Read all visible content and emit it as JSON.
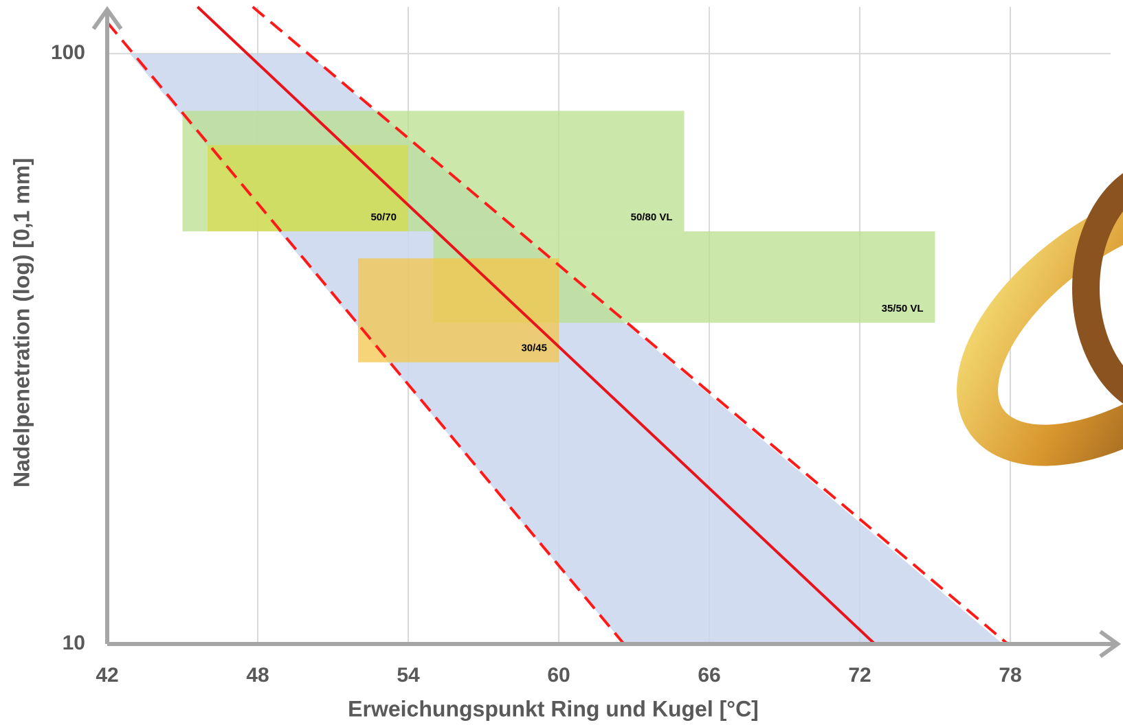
{
  "chart_data": {
    "type": "line",
    "y_scale": "log",
    "grid": true,
    "x_label": "Erweichungspunkt Ring und Kugel [°C]",
    "y_label": "Nadelpenetration (log) [0,1 mm]",
    "xlim": [
      42,
      82
    ],
    "xticks": [
      42,
      48,
      54,
      60,
      66,
      72,
      78
    ],
    "ylim": [
      10,
      120
    ],
    "yticks": [
      10,
      100
    ],
    "band": {
      "color": "#c9d6ef",
      "x": [
        42.9,
        50,
        77.7,
        62.6
      ],
      "y": [
        100,
        100,
        10,
        10
      ]
    },
    "regions": [
      {
        "label": "50/80 VL",
        "color": "#b9e08e",
        "x": [
          45,
          65
        ],
        "y": [
          50,
          80
        ]
      },
      {
        "label": "35/50 VL",
        "color": "#b9e08e",
        "x": [
          55,
          75
        ],
        "y": [
          35,
          50
        ]
      },
      {
        "label": "50/70",
        "color": "#d6dc4e",
        "x": [
          46,
          54
        ],
        "y": [
          50,
          70
        ]
      },
      {
        "label": "30/45",
        "color": "#f3c64a",
        "x": [
          52,
          60
        ],
        "y": [
          30,
          45
        ]
      }
    ],
    "series": [
      {
        "color": "#e8141c",
        "dash": false,
        "x": [
          45.6,
          72.6
        ],
        "y": [
          120,
          10
        ]
      },
      {
        "color": "#ff1a1a",
        "dash": true,
        "x": [
          42,
          62.6
        ],
        "y": [
          113,
          10
        ]
      },
      {
        "color": "#ff1a1a",
        "dash": true,
        "x": [
          47.8,
          77.9
        ],
        "y": [
          120,
          10
        ]
      }
    ]
  }
}
